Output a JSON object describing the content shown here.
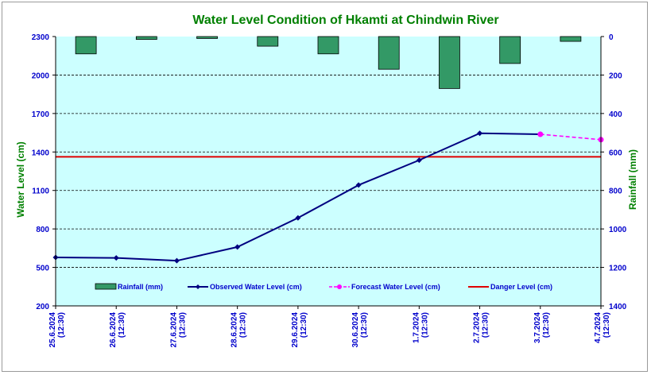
{
  "chart_data": {
    "type": "bar+line",
    "title": "Water Level Condition of Hkamti at Chindwin River",
    "ylabel": "Water Level (cm)",
    "y2label": "Rainfall (mm)",
    "ylim": [
      200,
      2300
    ],
    "y2lim": [
      0,
      1400
    ],
    "y2_inverted": true,
    "yticks": [
      "200",
      "500",
      "800",
      "1100",
      "1400",
      "1700",
      "2000",
      "2300"
    ],
    "y2ticks": [
      "0",
      "200",
      "400",
      "600",
      "800",
      "1000",
      "1200",
      "1400"
    ],
    "grid": "horizontal dashed",
    "categories": [
      "25.6.2024 (12:30)",
      "26.6.2024 (12:30)",
      "27.6.2024 (12:30)",
      "28.6.2024 (12:30)",
      "29.6.2024 (12:30)",
      "30.6.2024 (12:30)",
      "1.7.2024 (12:30)",
      "2.7.2024 (12:30)",
      "3.7.2024 (12:30)",
      "4.7.2024 (12:30)"
    ],
    "series": [
      {
        "name": "Rainfall (mm)",
        "kind": "bar",
        "axis": "right",
        "color": "#339966",
        "values": [
          90,
          15,
          10,
          50,
          90,
          170,
          270,
          140,
          25,
          null
        ]
      },
      {
        "name": "Observed Water Level (cm)",
        "kind": "line",
        "axis": "left",
        "color": "#000080",
        "values": [
          578,
          574,
          552,
          659,
          886,
          1142,
          1336,
          1546,
          1538,
          null
        ]
      },
      {
        "name": "Forecast Water Level (cm)",
        "kind": "dashed-line",
        "axis": "left",
        "color": "#ff00ff",
        "values": [
          null,
          null,
          null,
          null,
          null,
          null,
          null,
          null,
          1538,
          1496
        ]
      },
      {
        "name": "Danger Level (cm)",
        "kind": "hline",
        "axis": "left",
        "color": "#e00000",
        "value": 1362
      }
    ],
    "legend": "bottom-inside",
    "colors": {
      "plot_bg": "#ccffff",
      "title": "#008000",
      "axis_label": "#008000",
      "tick": "#0000cc"
    }
  }
}
